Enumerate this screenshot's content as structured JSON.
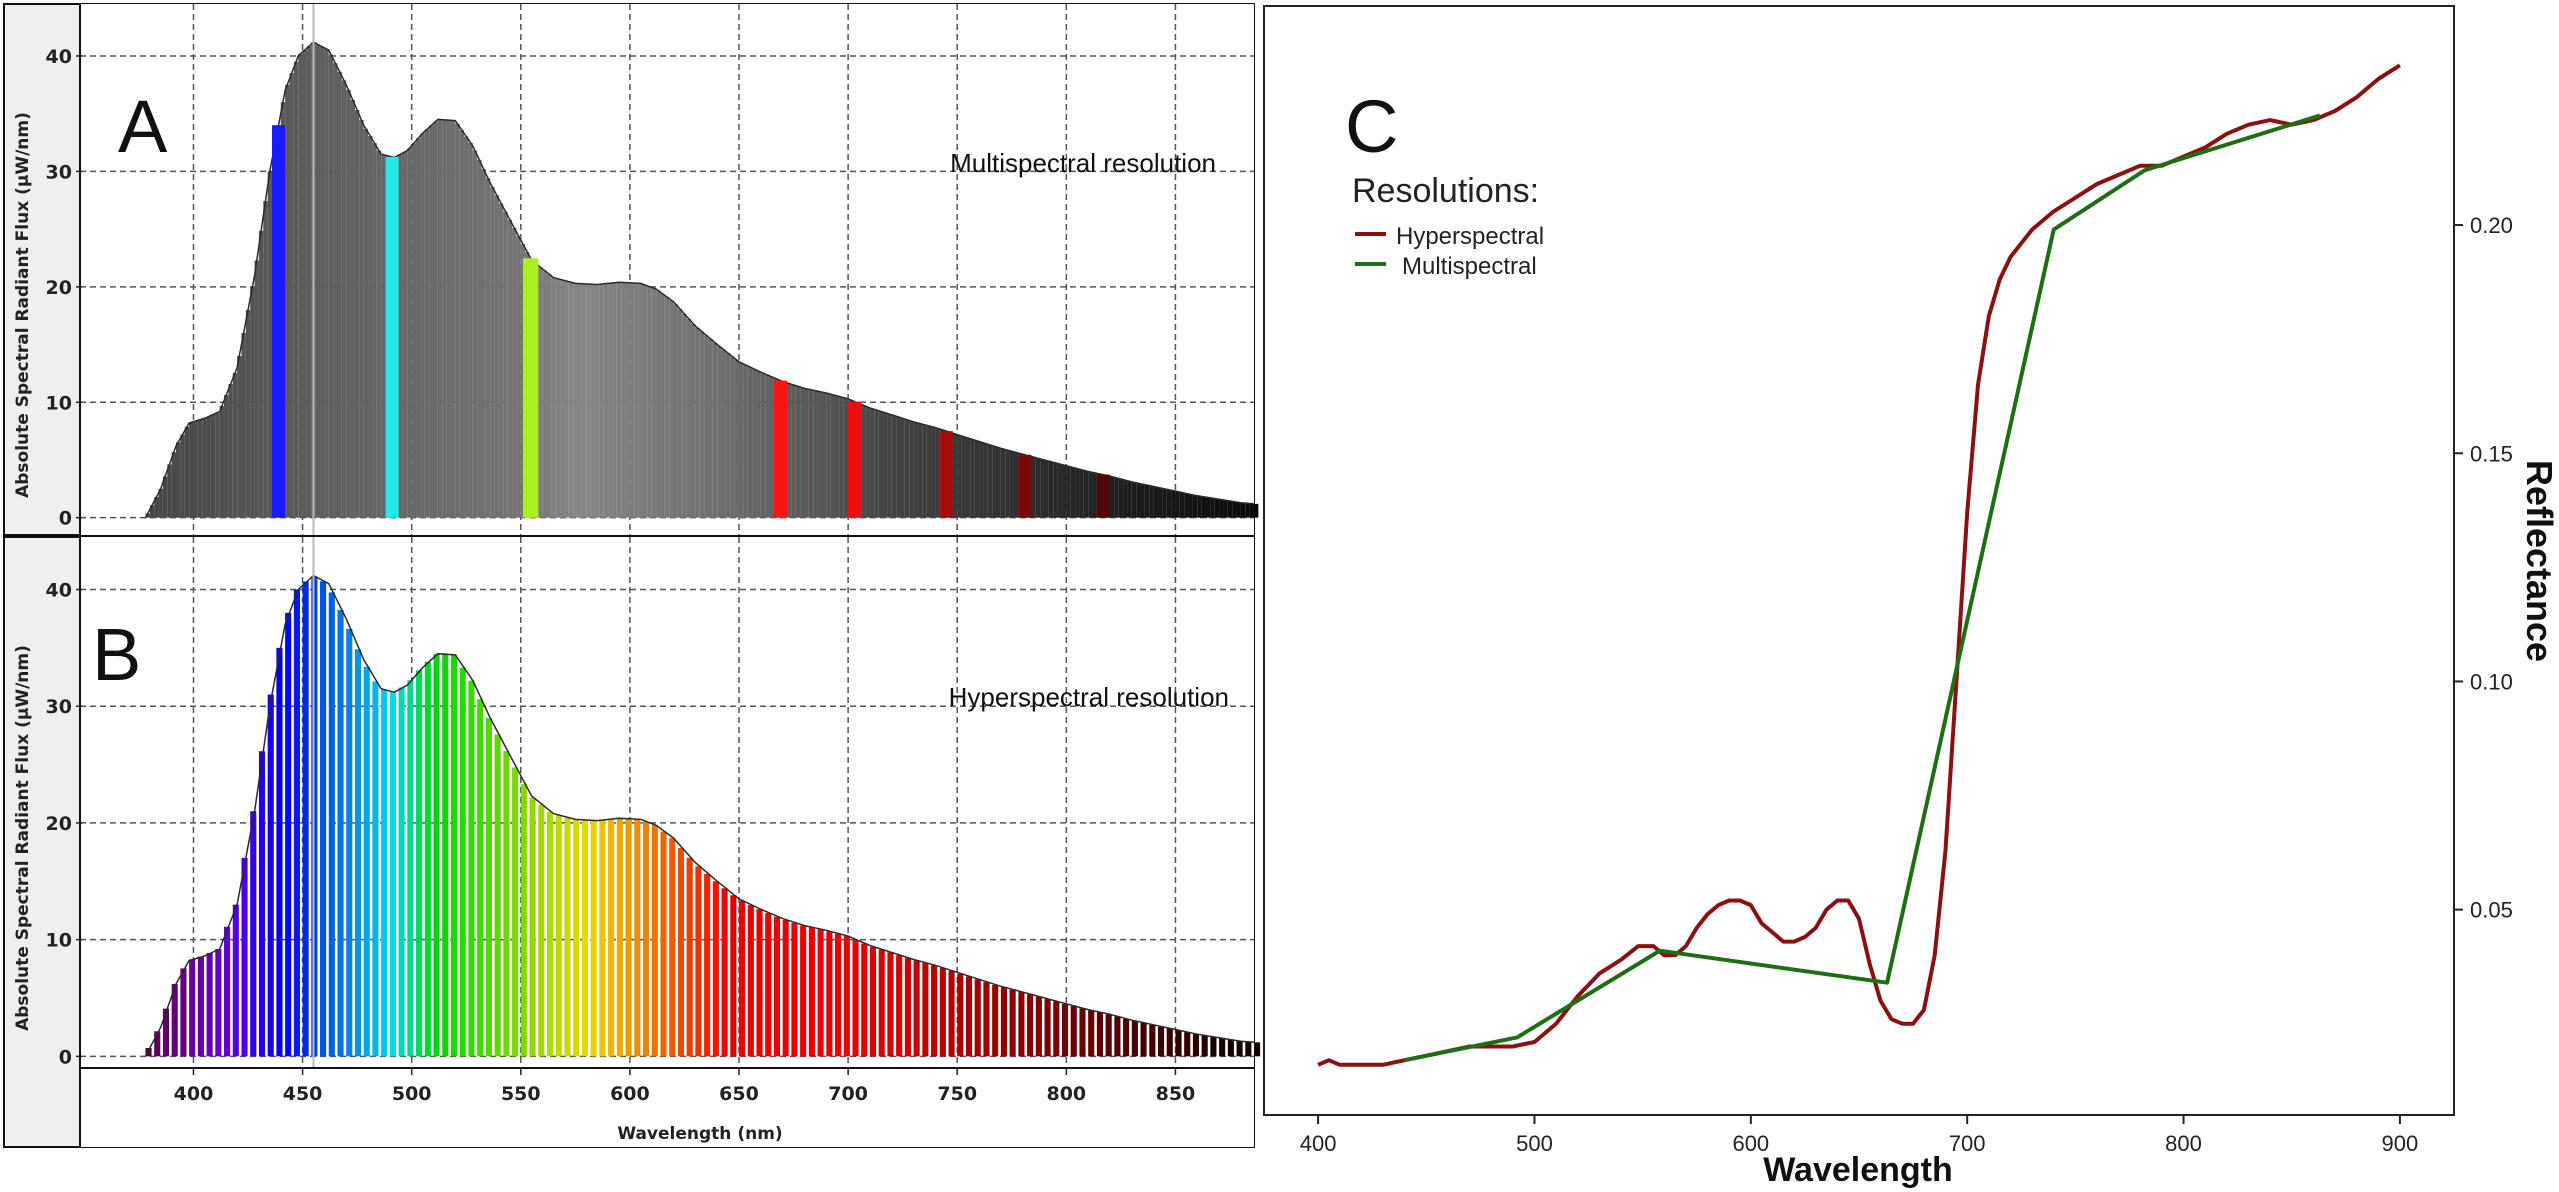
{
  "chart_data": [
    {
      "panel": "A",
      "type": "area",
      "annotation": "Multispectral resolution",
      "xlabel": "",
      "ylabel": "Absolute Spectral Radiant Flux (μW/nm)",
      "xlim": [
        348,
        886
      ],
      "ylim": [
        -1.5,
        44.5
      ],
      "yticks": [
        0,
        10,
        20,
        30,
        40
      ],
      "xgrid": [
        400,
        450,
        500,
        550,
        600,
        650,
        700,
        750,
        800,
        850
      ],
      "grid": true,
      "marker_line_x": 455,
      "spectrum": {
        "x": [
          378,
          385,
          392,
          398,
          405,
          412,
          420,
          428,
          435,
          442,
          448,
          455,
          462,
          470,
          478,
          486,
          492,
          498,
          505,
          512,
          520,
          528,
          536,
          545,
          555,
          565,
          575,
          585,
          595,
          605,
          612,
          620,
          630,
          640,
          650,
          660,
          670,
          680,
          690,
          700,
          710,
          720,
          730,
          740,
          750,
          760,
          770,
          780,
          790,
          800,
          810,
          820,
          830,
          840,
          850,
          860,
          870,
          880,
          886
        ],
        "y": [
          0,
          2.5,
          6.2,
          8.2,
          8.6,
          9.2,
          13,
          21,
          30,
          37,
          40,
          41.2,
          40.5,
          37.5,
          34,
          31.5,
          31.2,
          31.8,
          33.3,
          34.5,
          34.4,
          32.2,
          29,
          25.8,
          22.3,
          20.8,
          20.3,
          20.2,
          20.4,
          20.3,
          19.8,
          18.7,
          16.6,
          15,
          13.5,
          12.6,
          11.8,
          11.2,
          10.8,
          10.3,
          9.5,
          8.9,
          8.3,
          7.8,
          7.2,
          6.6,
          6.0,
          5.5,
          5.0,
          4.5,
          4.0,
          3.6,
          3.1,
          2.7,
          2.3,
          1.9,
          1.6,
          1.3,
          1.2
        ]
      },
      "bands": [
        {
          "x0": 436,
          "x1": 442,
          "color": "#1a1aff"
        },
        {
          "x0": 488,
          "x1": 494,
          "color": "#22e8e8"
        },
        {
          "x0": 551,
          "x1": 558,
          "color": "#aaf01e"
        },
        {
          "x0": 666,
          "x1": 672,
          "color": "#ff1414"
        },
        {
          "x0": 700,
          "x1": 706,
          "color": "#ee1010"
        },
        {
          "x0": 742,
          "x1": 748,
          "color": "#a50c0c"
        },
        {
          "x0": 778,
          "x1": 784,
          "color": "#780a0a"
        },
        {
          "x0": 814,
          "x1": 820,
          "color": "#500808"
        }
      ]
    },
    {
      "panel": "B",
      "type": "area",
      "annotation": "Hyperspectral resolution",
      "xlabel": "Wavelength (nm)",
      "ylabel": "Absolute Spectral Radiant Flux (μW/nm)",
      "xlim": [
        348,
        886
      ],
      "ylim": [
        -1,
        44.5
      ],
      "yticks": [
        0,
        10,
        20,
        30,
        40
      ],
      "xticks": [
        400,
        450,
        500,
        550,
        600,
        650,
        700,
        750,
        800,
        850
      ],
      "grid": true,
      "marker_line_x": 455,
      "spectrum": {
        "x": [
          378,
          385,
          392,
          398,
          405,
          412,
          420,
          428,
          435,
          442,
          448,
          455,
          462,
          470,
          478,
          486,
          492,
          498,
          505,
          512,
          520,
          528,
          536,
          545,
          555,
          565,
          575,
          585,
          595,
          605,
          612,
          620,
          630,
          640,
          650,
          660,
          670,
          680,
          690,
          700,
          710,
          720,
          730,
          740,
          750,
          760,
          770,
          780,
          790,
          800,
          810,
          820,
          830,
          840,
          850,
          860,
          870,
          880,
          886
        ],
        "y": [
          0,
          2.5,
          6.2,
          8.2,
          8.6,
          9.2,
          13,
          21,
          30,
          37,
          40,
          41.2,
          40.5,
          37.5,
          34,
          31.5,
          31.2,
          31.8,
          33.3,
          34.5,
          34.4,
          32.2,
          29,
          25.8,
          22.3,
          20.8,
          20.3,
          20.2,
          20.4,
          20.3,
          19.8,
          18.7,
          16.6,
          15,
          13.5,
          12.6,
          11.8,
          11.2,
          10.8,
          10.3,
          9.5,
          8.9,
          8.3,
          7.8,
          7.2,
          6.6,
          6.0,
          5.5,
          5.0,
          4.5,
          4.0,
          3.6,
          3.1,
          2.7,
          2.3,
          1.9,
          1.6,
          1.3,
          1.2
        ]
      }
    },
    {
      "panel": "C",
      "type": "line",
      "legend_title": "Resolutions:",
      "legend_position": "top-left",
      "xlabel": "Wavelength",
      "ylabel": "Reflectance",
      "xlim": [
        375,
        925
      ],
      "ylim": [
        0.005,
        0.248
      ],
      "xticks": [
        400,
        500,
        600,
        700,
        800,
        900
      ],
      "yticks": [
        0.05,
        0.1,
        0.15,
        0.2
      ],
      "ytick_labels": [
        "0.05",
        "0.10",
        "0.15",
        "0.20"
      ],
      "y_axis_side": "right",
      "grid": false,
      "series": [
        {
          "name": "Hyperspectral",
          "color": "#8b1010",
          "x": [
            400,
            405,
            410,
            415,
            420,
            430,
            440,
            450,
            460,
            470,
            480,
            490,
            500,
            505,
            510,
            520,
            530,
            540,
            548,
            555,
            560,
            565,
            570,
            575,
            580,
            585,
            590,
            595,
            600,
            605,
            610,
            615,
            620,
            625,
            630,
            635,
            640,
            645,
            650,
            655,
            660,
            665,
            670,
            675,
            680,
            685,
            690,
            695,
            700,
            705,
            710,
            715,
            720,
            725,
            730,
            735,
            740,
            750,
            760,
            770,
            780,
            790,
            800,
            810,
            820,
            830,
            840,
            850,
            860,
            870,
            880,
            890,
            900
          ],
          "y": [
            0.016,
            0.017,
            0.016,
            0.016,
            0.016,
            0.016,
            0.017,
            0.018,
            0.019,
            0.02,
            0.02,
            0.02,
            0.021,
            0.023,
            0.025,
            0.031,
            0.036,
            0.039,
            0.042,
            0.042,
            0.04,
            0.04,
            0.042,
            0.046,
            0.049,
            0.051,
            0.052,
            0.052,
            0.051,
            0.047,
            0.045,
            0.043,
            0.043,
            0.044,
            0.046,
            0.05,
            0.052,
            0.052,
            0.048,
            0.038,
            0.03,
            0.026,
            0.025,
            0.025,
            0.028,
            0.04,
            0.063,
            0.1,
            0.137,
            0.165,
            0.18,
            0.188,
            0.193,
            0.196,
            0.199,
            0.201,
            0.203,
            0.206,
            0.209,
            0.211,
            0.213,
            0.213,
            0.215,
            0.217,
            0.22,
            0.222,
            0.223,
            0.222,
            0.223,
            0.225,
            0.228,
            0.232,
            0.235
          ]
        },
        {
          "name": "Multispectral",
          "color": "#1e6e14",
          "x": [
            440,
            492,
            558,
            663,
            740,
            782,
            863
          ],
          "y": [
            0.017,
            0.022,
            0.041,
            0.034,
            0.199,
            0.212,
            0.224
          ]
        }
      ]
    }
  ],
  "panel_labels": {
    "a": "A",
    "b": "B",
    "c": "C"
  },
  "colors": {
    "axis": "#222222",
    "grid": "#555555",
    "panel_bg": "#efefef",
    "marker_line": "#bbbbbb"
  }
}
